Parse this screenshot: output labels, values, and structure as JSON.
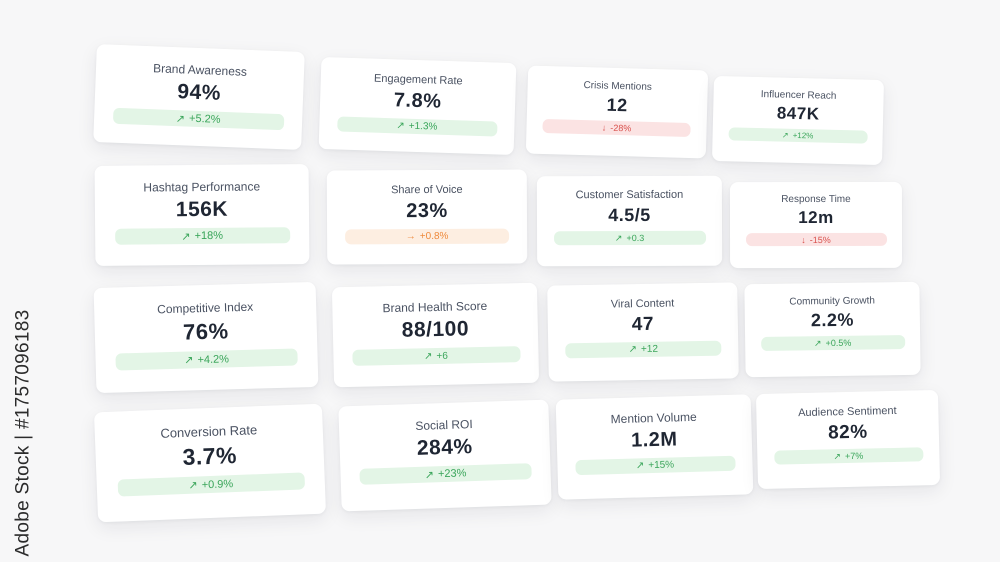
{
  "cards": [
    {
      "title": "Brand Awareness",
      "value": "94%",
      "arrow": "↗",
      "change": "+5.2%",
      "trend": "up"
    },
    {
      "title": "Engagement Rate",
      "value": "7.8%",
      "arrow": "↗",
      "change": "+1.3%",
      "trend": "up"
    },
    {
      "title": "Crisis Mentions",
      "value": "12",
      "arrow": "↓",
      "change": "-28%",
      "trend": "down"
    },
    {
      "title": "Influencer Reach",
      "value": "847K",
      "arrow": "↗",
      "change": "+12%",
      "trend": "up"
    },
    {
      "title": "Hashtag Performance",
      "value": "156K",
      "arrow": "↗",
      "change": "+18%",
      "trend": "up"
    },
    {
      "title": "Share of Voice",
      "value": "23%",
      "arrow": "→",
      "change": "+0.8%",
      "trend": "flat"
    },
    {
      "title": "Customer Satisfaction",
      "value": "4.5/5",
      "arrow": "↗",
      "change": "+0.3",
      "trend": "up"
    },
    {
      "title": "Response Time",
      "value": "12m",
      "arrow": "↓",
      "change": "-15%",
      "trend": "down"
    },
    {
      "title": "Competitive Index",
      "value": "76%",
      "arrow": "↗",
      "change": "+4.2%",
      "trend": "up"
    },
    {
      "title": "Brand Health Score",
      "value": "88/100",
      "arrow": "↗",
      "change": "+6",
      "trend": "up"
    },
    {
      "title": "Viral Content",
      "value": "47",
      "arrow": "↗",
      "change": "+12",
      "trend": "up"
    },
    {
      "title": "Community Growth",
      "value": "2.2%",
      "arrow": "↗",
      "change": "+0.5%",
      "trend": "up"
    },
    {
      "title": "Conversion Rate",
      "value": "3.7%",
      "arrow": "↗",
      "change": "+0.9%",
      "trend": "up"
    },
    {
      "title": "Social ROI",
      "value": "284%",
      "arrow": "↗",
      "change": "+23%",
      "trend": "up"
    },
    {
      "title": "Mention Volume",
      "value": "1.2M",
      "arrow": "↗",
      "change": "+15%",
      "trend": "up"
    },
    {
      "title": "Audience Sentiment",
      "value": "82%",
      "arrow": "↗",
      "change": "+7%",
      "trend": "up"
    }
  ],
  "side_credit": "Adobe Stock | #1757096183",
  "colors": {
    "up_text": "#3aa55a",
    "up_bg": "#e3f5e6",
    "down_text": "#d9534f",
    "down_bg": "#fbe3e3",
    "flat_text": "#ee8a3c",
    "flat_bg": "#fdeee1",
    "value_text": "#1f2633",
    "title_text": "#4a5262"
  },
  "icons": {
    "up": "trend-up-arrow",
    "down": "trend-down-arrow",
    "flat": "trend-flat-arrow"
  }
}
